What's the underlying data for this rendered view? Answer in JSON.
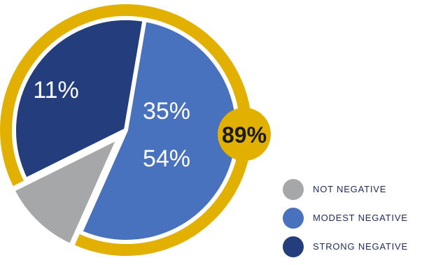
{
  "chart_data": {
    "type": "pie",
    "slices": [
      {
        "label": "NOT NEGATIVE",
        "value": 11,
        "display": "11%",
        "color": "#a6a7a9"
      },
      {
        "label": "STRONG NEGATIVE",
        "value": 35,
        "display": "35%",
        "color": "#243e7d"
      },
      {
        "label": "MODEST NEGATIVE",
        "value": 54,
        "display": "54%",
        "color": "#4872bd"
      }
    ],
    "highlight": {
      "label": "89%",
      "covers": [
        "STRONG NEGATIVE",
        "MODEST NEGATIVE"
      ],
      "color": "#e2b000"
    },
    "legend_position": "bottom-right",
    "legend": [
      {
        "label": "NOT NEGATIVE",
        "color": "#a6a7a9"
      },
      {
        "label": "MODEST NEGATIVE",
        "color": "#4872bd"
      },
      {
        "label": "STRONG NEGATIVE",
        "color": "#243e7d"
      }
    ]
  }
}
